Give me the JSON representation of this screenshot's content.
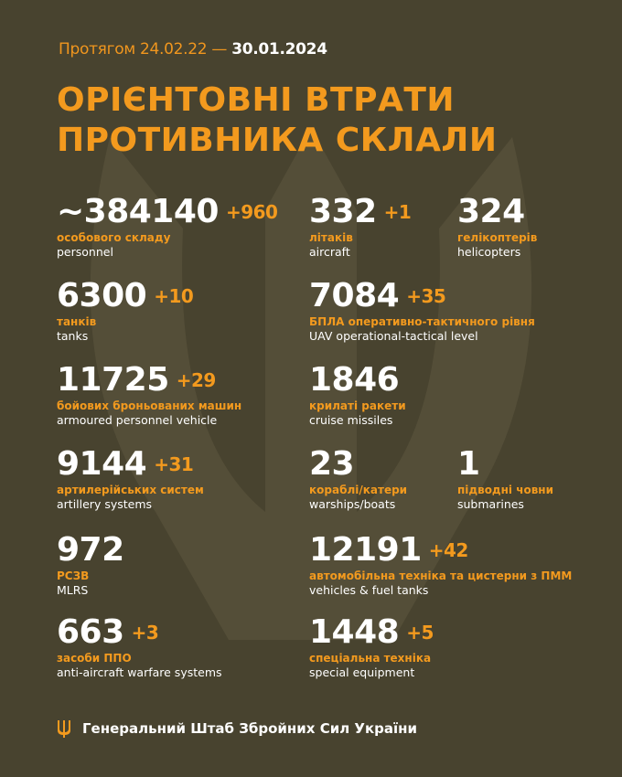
{
  "header": {
    "period_prefix": "Протягом 24.02.22 —",
    "period_date": "30.01.2024",
    "title_line1": "ОРІЄНТОВНІ ВТРАТИ",
    "title_line2": "ПРОТИВНИКА СКЛАЛИ"
  },
  "colors": {
    "background": "#48432f",
    "accent": "#f39a1e",
    "text": "#ffffff"
  },
  "items": [
    {
      "value": "~384140",
      "delta": "+960",
      "ua": "особового складу",
      "en": "personnel"
    },
    {
      "value": "332",
      "delta": "+1",
      "ua": "літаків",
      "en": "aircraft"
    },
    {
      "value": "324",
      "delta": "",
      "ua": "гелікоптерів",
      "en": "helicopters"
    },
    {
      "value": "6300",
      "delta": "+10",
      "ua": "танків",
      "en": "tanks"
    },
    {
      "value": "7084",
      "delta": "+35",
      "ua": "БПЛА оперативно-тактичного рівня",
      "en": "UAV operational-tactical level"
    },
    {
      "value": "11725",
      "delta": "+29",
      "ua": "бойових броньованих машин",
      "en": "armoured personnel vehicle"
    },
    {
      "value": "1846",
      "delta": "",
      "ua": "крилаті ракети",
      "en": "cruise missiles"
    },
    {
      "value": "9144",
      "delta": "+31",
      "ua": "артилерійських систем",
      "en": "artillery systems"
    },
    {
      "value": "23",
      "delta": "",
      "ua": "кораблі/катери",
      "en": "warships/boats"
    },
    {
      "value": "1",
      "delta": "",
      "ua": "підводні човни",
      "en": "submarines"
    },
    {
      "value": "972",
      "delta": "",
      "ua": "РСЗВ",
      "en": "MLRS"
    },
    {
      "value": "12191",
      "delta": "+42",
      "ua": "автомобільна техніка та цистерни з ПММ",
      "en": "vehicles & fuel tanks"
    },
    {
      "value": "663",
      "delta": "+3",
      "ua": "засоби ППО",
      "en": "anti-aircraft warfare systems"
    },
    {
      "value": "1448",
      "delta": "+5",
      "ua": "спеціальна техніка",
      "en": "special equipment"
    }
  ],
  "footer": {
    "text": "Генеральний Штаб Збройних Сил України",
    "icon": "trident-icon"
  }
}
